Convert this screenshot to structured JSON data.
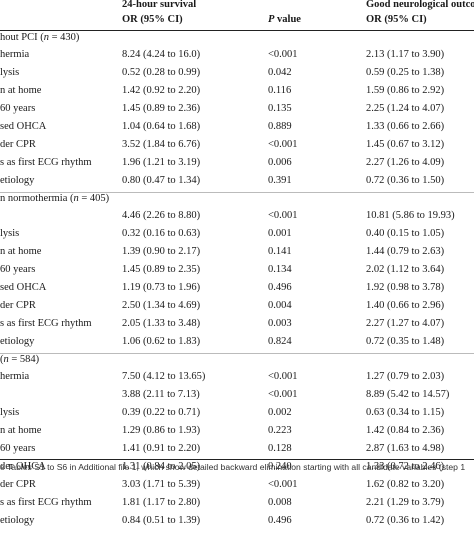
{
  "header": {
    "col_survival": "24-hour survival",
    "col_neuro": "Good neurological outcom",
    "or_ci_1": "OR (95% CI)",
    "p_value_p": "P",
    "p_value_rest": " value",
    "or_ci_2": "OR (95% CI)"
  },
  "sections": [
    {
      "label_pre": "hout PCI (",
      "label_n": "n",
      "label_post": " = 430)",
      "rows": [
        {
          "label": "hermia",
          "or1": "8.24 (4.24 to 16.0)",
          "p": "<0.001",
          "or2": "2.13 (1.17 to 3.90)"
        },
        {
          "label": "lysis",
          "or1": "0.52 (0.28 to 0.99)",
          "p": "0.042",
          "or2": "0.59 (0.25 to 1.38)"
        },
        {
          "label": "n at home",
          "or1": "1.42 (0.92 to 2.20)",
          "p": "0.116",
          "or2": "1.59 (0.86 to 2.92)"
        },
        {
          "label": "60 years",
          "or1": "1.45 (0.89 to 2.36)",
          "p": "0.135",
          "or2": "2.25 (1.24 to 4.07)"
        },
        {
          "label": "sed OHCA",
          "or1": "1.04 (0.64 to 1.68)",
          "p": "0.889",
          "or2": "1.33 (0.66 to 2.66)"
        },
        {
          "label": "der CPR",
          "or1": "3.52 (1.84 to 6.76)",
          "p": "<0.001",
          "or2": "1.45 (0.67 to 3.12)"
        },
        {
          "label": "s as first ECG rhythm",
          "or1": "1.96 (1.21 to 3.19)",
          "p": "0.006",
          "or2": "2.27 (1.26 to 4.09)"
        },
        {
          "label": "etiology",
          "or1": "0.80 (0.47 to 1.34)",
          "p": "0.391",
          "or2": "0.72 (0.36 to 1.50)"
        }
      ]
    },
    {
      "label_pre": "n normothermia (",
      "label_n": "n",
      "label_post": " = 405)",
      "rows": [
        {
          "label": "",
          "or1": "4.46 (2.26 to 8.80)",
          "p": "<0.001",
          "or2": "10.81 (5.86 to 19.93)"
        },
        {
          "label": "lysis",
          "or1": "0.32 (0.16 to 0.63)",
          "p": "0.001",
          "or2": "0.40 (0.15 to 1.05)"
        },
        {
          "label": "n at home",
          "or1": "1.39 (0.90 to 2.17)",
          "p": "0.141",
          "or2": "1.44 (0.79 to 2.63)"
        },
        {
          "label": "60 years",
          "or1": "1.45 (0.89 to 2.35)",
          "p": "0.134",
          "or2": "2.02 (1.12 to 3.64)"
        },
        {
          "label": "sed OHCA",
          "or1": "1.19 (0.73 to 1.96)",
          "p": "0.496",
          "or2": "1.92 (0.98 to 3.78)"
        },
        {
          "label": "der CPR",
          "or1": "2.50 (1.34 to 4.69)",
          "p": "0.004",
          "or2": "1.40 (0.66 to 2.96)"
        },
        {
          "label": "s as first ECG rhythm",
          "or1": "2.05 (1.33 to 3.48)",
          "p": "0.003",
          "or2": "2.27 (1.27 to 4.07)"
        },
        {
          "label": "etiology",
          "or1": "1.06 (0.62 to 1.83)",
          "p": "0.824",
          "or2": "0.72 (0.35 to 1.48)"
        }
      ]
    },
    {
      "label_pre": "(",
      "label_n": "n",
      "label_post": " = 584)",
      "rows": [
        {
          "label": "hermia",
          "or1": "7.50 (4.12 to 13.65)",
          "p": "<0.001",
          "or2": "1.27 (0.79 to 2.03)"
        },
        {
          "label": "",
          "or1": "3.88 (2.11 to 7.13)",
          "p": "<0.001",
          "or2": "8.89 (5.42 to 14.57)"
        },
        {
          "label": "lysis",
          "or1": "0.39 (0.22 to 0.71)",
          "p": "0.002",
          "or2": "0.63 (0.34 to 1.15)"
        },
        {
          "label": "n at home",
          "or1": "1.29 (0.86 to 1.93)",
          "p": "0.223",
          "or2": "1.42 (0.84 to 2.36)"
        },
        {
          "label": "60 years",
          "or1": "1.41 (0.91 to 2.20)",
          "p": "0.128",
          "or2": "2.87 (1.63 to 4.98)"
        },
        {
          "label": "der OHCA",
          "or1": "1.31 (0.84 to 2.05)",
          "p": "0.240",
          "or2": "1.33 (0.72 to 2.46)"
        },
        {
          "label": "der CPR",
          "or1": "3.03 (1.71 to 5.39)",
          "p": "<0.001",
          "or2": "1.62 (0.82 to 3.20)"
        },
        {
          "label": "s as first ECG rhythm",
          "or1": "1.81 (1.17 to 2.80)",
          "p": "0.008",
          "or2": "2.21 (1.29 to 3.79)"
        },
        {
          "label": "etiology",
          "or1": "0.84 (0.51 to 1.39)",
          "p": "0.496",
          "or2": "0.72 (0.36 to 1.42)"
        }
      ]
    }
  ],
  "footnote": "e Tables S1 to S6 in Additional file 1, which show detailed backward elimination starting with all candidate variables (step 1"
}
